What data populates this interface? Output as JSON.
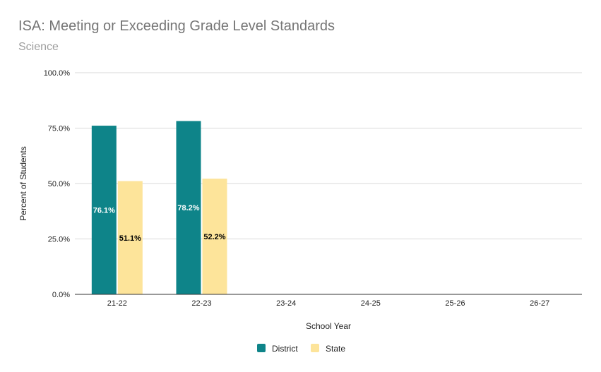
{
  "chart_data": {
    "type": "bar",
    "title": "ISA: Meeting or Exceeding Grade Level Standards",
    "subtitle": "Science",
    "xlabel": "School Year",
    "ylabel": "Percent of Students",
    "categories": [
      "21-22",
      "22-23",
      "23-24",
      "24-25",
      "25-26",
      "26-27"
    ],
    "ylim": [
      0,
      100
    ],
    "yticks": [
      0,
      25,
      50,
      75,
      100
    ],
    "ytick_labels": [
      "0.0%",
      "25.0%",
      "50.0%",
      "75.0%",
      "100.0%"
    ],
    "grid": true,
    "legend_position": "bottom",
    "series": [
      {
        "name": "District",
        "color": "#0e8489",
        "label_color": "#ffffff",
        "values": [
          76.1,
          78.2,
          null,
          null,
          null,
          null
        ],
        "labels": [
          "76.1%",
          "78.2%",
          "",
          "",
          "",
          ""
        ]
      },
      {
        "name": "State",
        "color": "#fde49a",
        "label_color": "#000000",
        "values": [
          51.1,
          52.2,
          null,
          null,
          null,
          null
        ],
        "labels": [
          "51.1%",
          "52.2%",
          "",
          "",
          "",
          ""
        ]
      }
    ]
  }
}
